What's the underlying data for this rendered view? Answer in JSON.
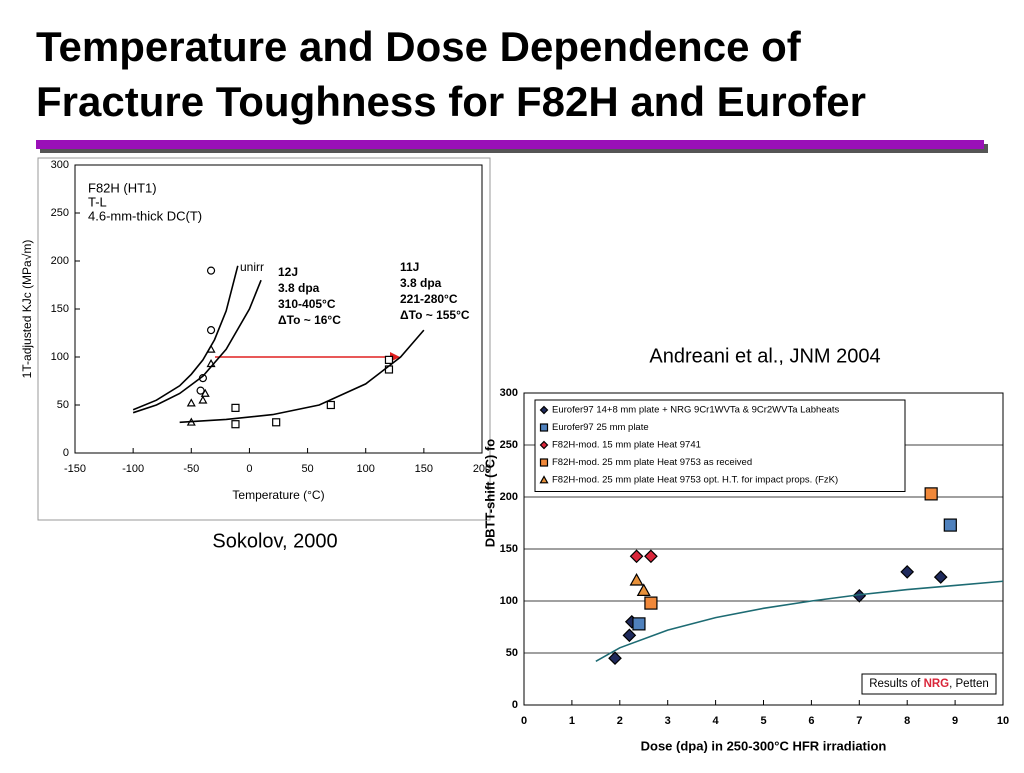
{
  "title": [
    "Temperature and Dose Dependence of",
    "Fracture Toughness for F82H and Eurofer"
  ],
  "captions": [
    "Sokolov, 2000",
    "Andreani et al., JNM 2004"
  ],
  "chart_data": [
    {
      "type": "scatter",
      "x_label": "Temperature (°C)",
      "y_label": "1T-adjusted KJc (MPa√m)",
      "xlim": [
        -150,
        200
      ],
      "xticks": [
        -150,
        -100,
        -50,
        0,
        50,
        100,
        150,
        200
      ],
      "ylim": [
        0,
        300
      ],
      "yticks": [
        0,
        50,
        100,
        150,
        200,
        250,
        300
      ],
      "grid": false,
      "annotations": [
        "F82H (HT1)",
        "T-L",
        "4.6-mm-thick DC(T)",
        "unirr",
        "12J",
        "3.8 dpa",
        "310-405°C",
        "ΔTo ~ 16°C",
        "11J",
        "3.8 dpa",
        "221-280°C",
        "ΔTo ~ 155°C"
      ],
      "series": [
        {
          "marker": "circle",
          "color": "#000000",
          "filled": false,
          "x": [
            -33,
            -33,
            -40,
            -42
          ],
          "values": [
            190,
            128,
            78,
            65
          ]
        },
        {
          "marker": "triangle",
          "color": "#000000",
          "filled": false,
          "x": [
            -33,
            -33,
            -50,
            -40,
            -38,
            -50
          ],
          "values": [
            108,
            93,
            52,
            55,
            62,
            32
          ]
        },
        {
          "marker": "square",
          "color": "#000000",
          "filled": false,
          "x": [
            -12,
            -12,
            23,
            70,
            120,
            120
          ],
          "values": [
            47,
            30,
            32,
            50,
            97,
            87
          ]
        },
        {
          "marker": "line",
          "color": "#000000",
          "x": [
            -100,
            -80,
            -60,
            -50,
            -40,
            -30,
            -20,
            -10
          ],
          "values": [
            45,
            55,
            70,
            82,
            97,
            118,
            148,
            195
          ]
        },
        {
          "marker": "line",
          "color": "#000000",
          "x": [
            -100,
            -80,
            -60,
            -40,
            -20,
            0,
            10
          ],
          "values": [
            42,
            50,
            62,
            80,
            108,
            150,
            180
          ]
        },
        {
          "marker": "line",
          "color": "#000000",
          "x": [
            -60,
            -20,
            20,
            60,
            100,
            130,
            150
          ],
          "values": [
            32,
            35,
            40,
            50,
            72,
            100,
            128
          ]
        }
      ]
    },
    {
      "type": "scatter",
      "x_label": "Dose (dpa) in 250-300°C HFR irradiation",
      "y_label": "DBTT-shift (°C) fo",
      "xlim": [
        0,
        10
      ],
      "xticks": [
        0,
        1,
        2,
        3,
        4,
        5,
        6,
        7,
        8,
        9,
        10
      ],
      "ylim": [
        0,
        300
      ],
      "yticks": [
        0,
        50,
        100,
        150,
        200,
        250,
        300
      ],
      "grid": true,
      "annotation": [
        "Results of ",
        "NRG",
        ", Petten"
      ],
      "series": [
        {
          "name": "Eurofer97 14+8 mm plate + NRG 9Cr1WVTa & 9Cr2WVTa Labheats",
          "marker": "diamond",
          "color": "#1f2a5c",
          "filled": true,
          "x": [
            1.9,
            2.2,
            2.25,
            7,
            8,
            8.7
          ],
          "values": [
            45,
            67,
            80,
            105,
            128,
            123
          ]
        },
        {
          "name": "Eurofer97 25 mm plate",
          "marker": "square",
          "color": "#4f81bd",
          "filled": true,
          "x": [
            2.4,
            8.9
          ],
          "values": [
            78,
            173
          ]
        },
        {
          "name": "F82H-mod. 15 mm plate Heat 9741",
          "marker": "diamond",
          "color": "#d9263a",
          "filled": true,
          "x": [
            2.35,
            2.65
          ],
          "values": [
            143,
            143
          ]
        },
        {
          "name": "F82H-mod. 25 mm plate Heat 9753 as received",
          "marker": "square",
          "color": "#f0883a",
          "filled": true,
          "x": [
            2.65,
            8.5
          ],
          "values": [
            98,
            203
          ]
        },
        {
          "name": "F82H-mod. 25 mm plate Heat 9753 opt. H.T. for impact props. (FzK)",
          "marker": "triangle",
          "color": "#e8913a",
          "filled": true,
          "x": [
            2.35,
            2.5
          ],
          "values": [
            120,
            110
          ]
        },
        {
          "marker": "line",
          "color": "#1d6b73",
          "x": [
            1.5,
            2,
            3,
            4,
            5,
            6,
            7,
            8,
            9,
            10
          ],
          "values": [
            42,
            55,
            72,
            84,
            93,
            100,
            106,
            111,
            115,
            119
          ]
        }
      ]
    }
  ]
}
